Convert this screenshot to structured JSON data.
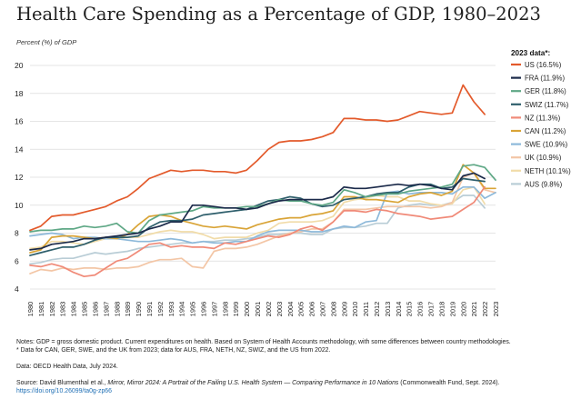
{
  "title": "Health Care Spending as a Percentage of GDP, 1980–2023",
  "chart_data": {
    "type": "line",
    "ylabel": "Percent (%) of GDP",
    "xlabel": "",
    "ylim": [
      4,
      20
    ],
    "yticks": [
      4,
      6,
      8,
      10,
      12,
      14,
      16,
      18,
      20
    ],
    "x": [
      1980,
      1981,
      1982,
      1983,
      1984,
      1985,
      1986,
      1987,
      1988,
      1989,
      1990,
      1991,
      1992,
      1993,
      1994,
      1995,
      1996,
      1997,
      1998,
      1999,
      2000,
      2001,
      2002,
      2003,
      2004,
      2005,
      2006,
      2007,
      2008,
      2009,
      2010,
      2011,
      2012,
      2013,
      2014,
      2015,
      2016,
      2017,
      2018,
      2019,
      2020,
      2021,
      2022,
      2023
    ],
    "grid": "horizontal",
    "legend_title": "2023 data*:",
    "legend_position": "right",
    "series": [
      {
        "name": "US (16.5%)",
        "color": "#e35a2b",
        "values": [
          8.2,
          8.5,
          9.2,
          9.3,
          9.3,
          9.5,
          9.7,
          9.9,
          10.3,
          10.6,
          11.2,
          11.9,
          12.2,
          12.5,
          12.4,
          12.5,
          12.5,
          12.4,
          12.4,
          12.3,
          12.5,
          13.2,
          14.0,
          14.5,
          14.6,
          14.6,
          14.7,
          14.9,
          15.2,
          16.2,
          16.2,
          16.1,
          16.1,
          16.0,
          16.1,
          16.4,
          16.7,
          16.6,
          16.5,
          16.6,
          18.6,
          17.4,
          16.5,
          null
        ]
      },
      {
        "name": "FRA (11.9%)",
        "color": "#1b2a4a",
        "values": [
          6.8,
          6.9,
          7.2,
          7.3,
          7.4,
          7.6,
          7.6,
          7.7,
          7.8,
          7.9,
          8.0,
          8.3,
          8.5,
          8.8,
          8.8,
          10.0,
          10.0,
          9.9,
          9.8,
          9.8,
          9.7,
          9.8,
          10.1,
          10.3,
          10.4,
          10.4,
          10.4,
          10.4,
          10.6,
          11.3,
          11.2,
          11.2,
          11.3,
          11.4,
          11.5,
          11.4,
          11.5,
          11.4,
          11.2,
          11.1,
          12.1,
          12.3,
          11.9,
          null
        ]
      },
      {
        "name": "GER (11.8%)",
        "color": "#5fa886",
        "values": [
          8.1,
          8.2,
          8.2,
          8.3,
          8.3,
          8.5,
          8.4,
          8.5,
          8.7,
          8.1,
          8.0,
          8.9,
          9.3,
          9.4,
          9.5,
          9.6,
          9.9,
          9.8,
          9.8,
          9.8,
          9.9,
          9.9,
          10.1,
          10.4,
          10.3,
          10.3,
          10.1,
          10.0,
          10.2,
          11.1,
          10.9,
          10.6,
          10.7,
          10.8,
          10.8,
          11.0,
          11.1,
          11.2,
          11.3,
          11.5,
          12.8,
          12.9,
          12.7,
          11.8
        ]
      },
      {
        "name": "SWIZ (11.7%)",
        "color": "#2f5f6c",
        "values": [
          6.4,
          6.6,
          6.8,
          7.0,
          7.0,
          7.2,
          7.5,
          7.7,
          7.7,
          7.7,
          7.8,
          8.4,
          8.8,
          8.9,
          8.9,
          9.0,
          9.3,
          9.4,
          9.5,
          9.6,
          9.7,
          10.0,
          10.3,
          10.4,
          10.6,
          10.5,
          10.1,
          9.9,
          10.0,
          10.4,
          10.5,
          10.6,
          10.8,
          10.9,
          10.9,
          11.3,
          11.5,
          11.5,
          11.2,
          11.3,
          11.9,
          11.8,
          11.7,
          null
        ]
      },
      {
        "name": "NZ (11.3%)",
        "color": "#f08a78",
        "values": [
          5.7,
          5.6,
          5.8,
          5.6,
          5.2,
          4.9,
          5.0,
          5.5,
          6.0,
          6.2,
          6.7,
          7.2,
          7.3,
          7.0,
          7.1,
          7.0,
          7.0,
          6.9,
          7.3,
          7.2,
          7.4,
          7.6,
          7.8,
          7.7,
          7.9,
          8.3,
          8.5,
          8.2,
          8.8,
          9.6,
          9.6,
          9.5,
          9.7,
          9.6,
          9.4,
          9.3,
          9.2,
          9.0,
          9.1,
          9.2,
          9.7,
          10.2,
          11.3,
          null
        ]
      },
      {
        "name": "CAN (11.2%)",
        "color": "#d9a437",
        "values": [
          6.6,
          6.8,
          7.7,
          7.8,
          7.8,
          7.7,
          7.6,
          7.7,
          7.6,
          7.9,
          8.6,
          9.2,
          9.3,
          9.2,
          8.9,
          8.7,
          8.5,
          8.4,
          8.5,
          8.4,
          8.3,
          8.6,
          8.8,
          9.0,
          9.1,
          9.1,
          9.3,
          9.4,
          9.6,
          10.6,
          10.6,
          10.4,
          10.4,
          10.3,
          10.2,
          10.6,
          10.8,
          10.9,
          10.7,
          11.0,
          12.9,
          12.3,
          11.2,
          11.2
        ]
      },
      {
        "name": "SWE (10.9%)",
        "color": "#8db9da",
        "values": [
          7.8,
          7.9,
          8.0,
          7.9,
          7.6,
          7.7,
          7.7,
          7.6,
          7.6,
          7.5,
          7.4,
          7.4,
          7.5,
          7.6,
          7.5,
          7.3,
          7.4,
          7.3,
          7.3,
          7.4,
          7.4,
          7.8,
          8.1,
          8.2,
          8.2,
          8.2,
          8.1,
          8.1,
          8.3,
          8.5,
          8.4,
          8.8,
          8.9,
          10.9,
          11.0,
          10.8,
          10.9,
          10.9,
          10.9,
          10.8,
          11.3,
          11.3,
          10.5,
          10.9
        ]
      },
      {
        "name": "UK (10.9%)",
        "color": "#f3c6a6",
        "values": [
          5.1,
          5.4,
          5.3,
          5.5,
          5.4,
          5.5,
          5.5,
          5.4,
          5.5,
          5.5,
          5.6,
          5.9,
          6.1,
          6.1,
          6.2,
          5.6,
          5.5,
          6.7,
          6.9,
          6.9,
          7.0,
          7.2,
          7.5,
          7.8,
          8.0,
          8.1,
          8.3,
          8.3,
          8.8,
          9.7,
          9.7,
          9.7,
          9.8,
          9.9,
          9.9,
          9.9,
          9.9,
          9.8,
          9.9,
          10.2,
          12.0,
          12.3,
          11.1,
          10.9
        ]
      },
      {
        "name": "NETH (10.1%)",
        "color": "#f1dca9",
        "values": [
          6.9,
          7.0,
          7.4,
          7.4,
          7.3,
          7.2,
          7.4,
          7.6,
          7.6,
          7.7,
          7.7,
          7.9,
          8.1,
          8.2,
          8.1,
          8.1,
          7.9,
          7.6,
          7.7,
          7.7,
          7.7,
          8.0,
          8.2,
          8.7,
          8.8,
          8.8,
          8.8,
          8.9,
          9.2,
          10.2,
          10.4,
          10.5,
          10.7,
          10.6,
          10.6,
          10.3,
          10.3,
          10.1,
          10.0,
          10.1,
          11.1,
          11.3,
          10.1,
          null
        ]
      },
      {
        "name": "AUS (9.8%)",
        "color": "#b9cdd6",
        "values": [
          5.8,
          5.9,
          6.1,
          6.2,
          6.2,
          6.4,
          6.6,
          6.5,
          6.6,
          6.7,
          6.9,
          7.0,
          7.1,
          7.2,
          7.3,
          7.3,
          7.4,
          7.4,
          7.5,
          7.5,
          7.6,
          7.7,
          7.9,
          7.9,
          8.0,
          8.0,
          7.9,
          7.9,
          8.3,
          8.4,
          8.4,
          8.5,
          8.7,
          8.7,
          9.8,
          10.0,
          10.1,
          10.0,
          10.0,
          10.2,
          10.7,
          10.7,
          9.8,
          null
        ]
      }
    ]
  },
  "notes": {
    "line1": "Notes: GDP = gross domestic product. Current expenditures on health. Based on System of Health Accounts methodology, with some differences between country methodologies.",
    "line2": "* Data for CAN, GER, SWE, and the UK from 2023; data for AUS, FRA, NETH, NZ, SWIZ, and the US from 2022.",
    "data_source": "Data: OECD Health Data, July 2024.",
    "source_prefix": "Source: David Blumenthal et al., ",
    "source_title": "Mirror, Mirror 2024: A Portrait of the Failing U.S. Health System — Comparing Performance in 10 Nations",
    "source_suffix": " (Commonwealth Fund, Sept. 2024).",
    "doi": "https://doi.org/10.26099/ta0g-zp66"
  }
}
